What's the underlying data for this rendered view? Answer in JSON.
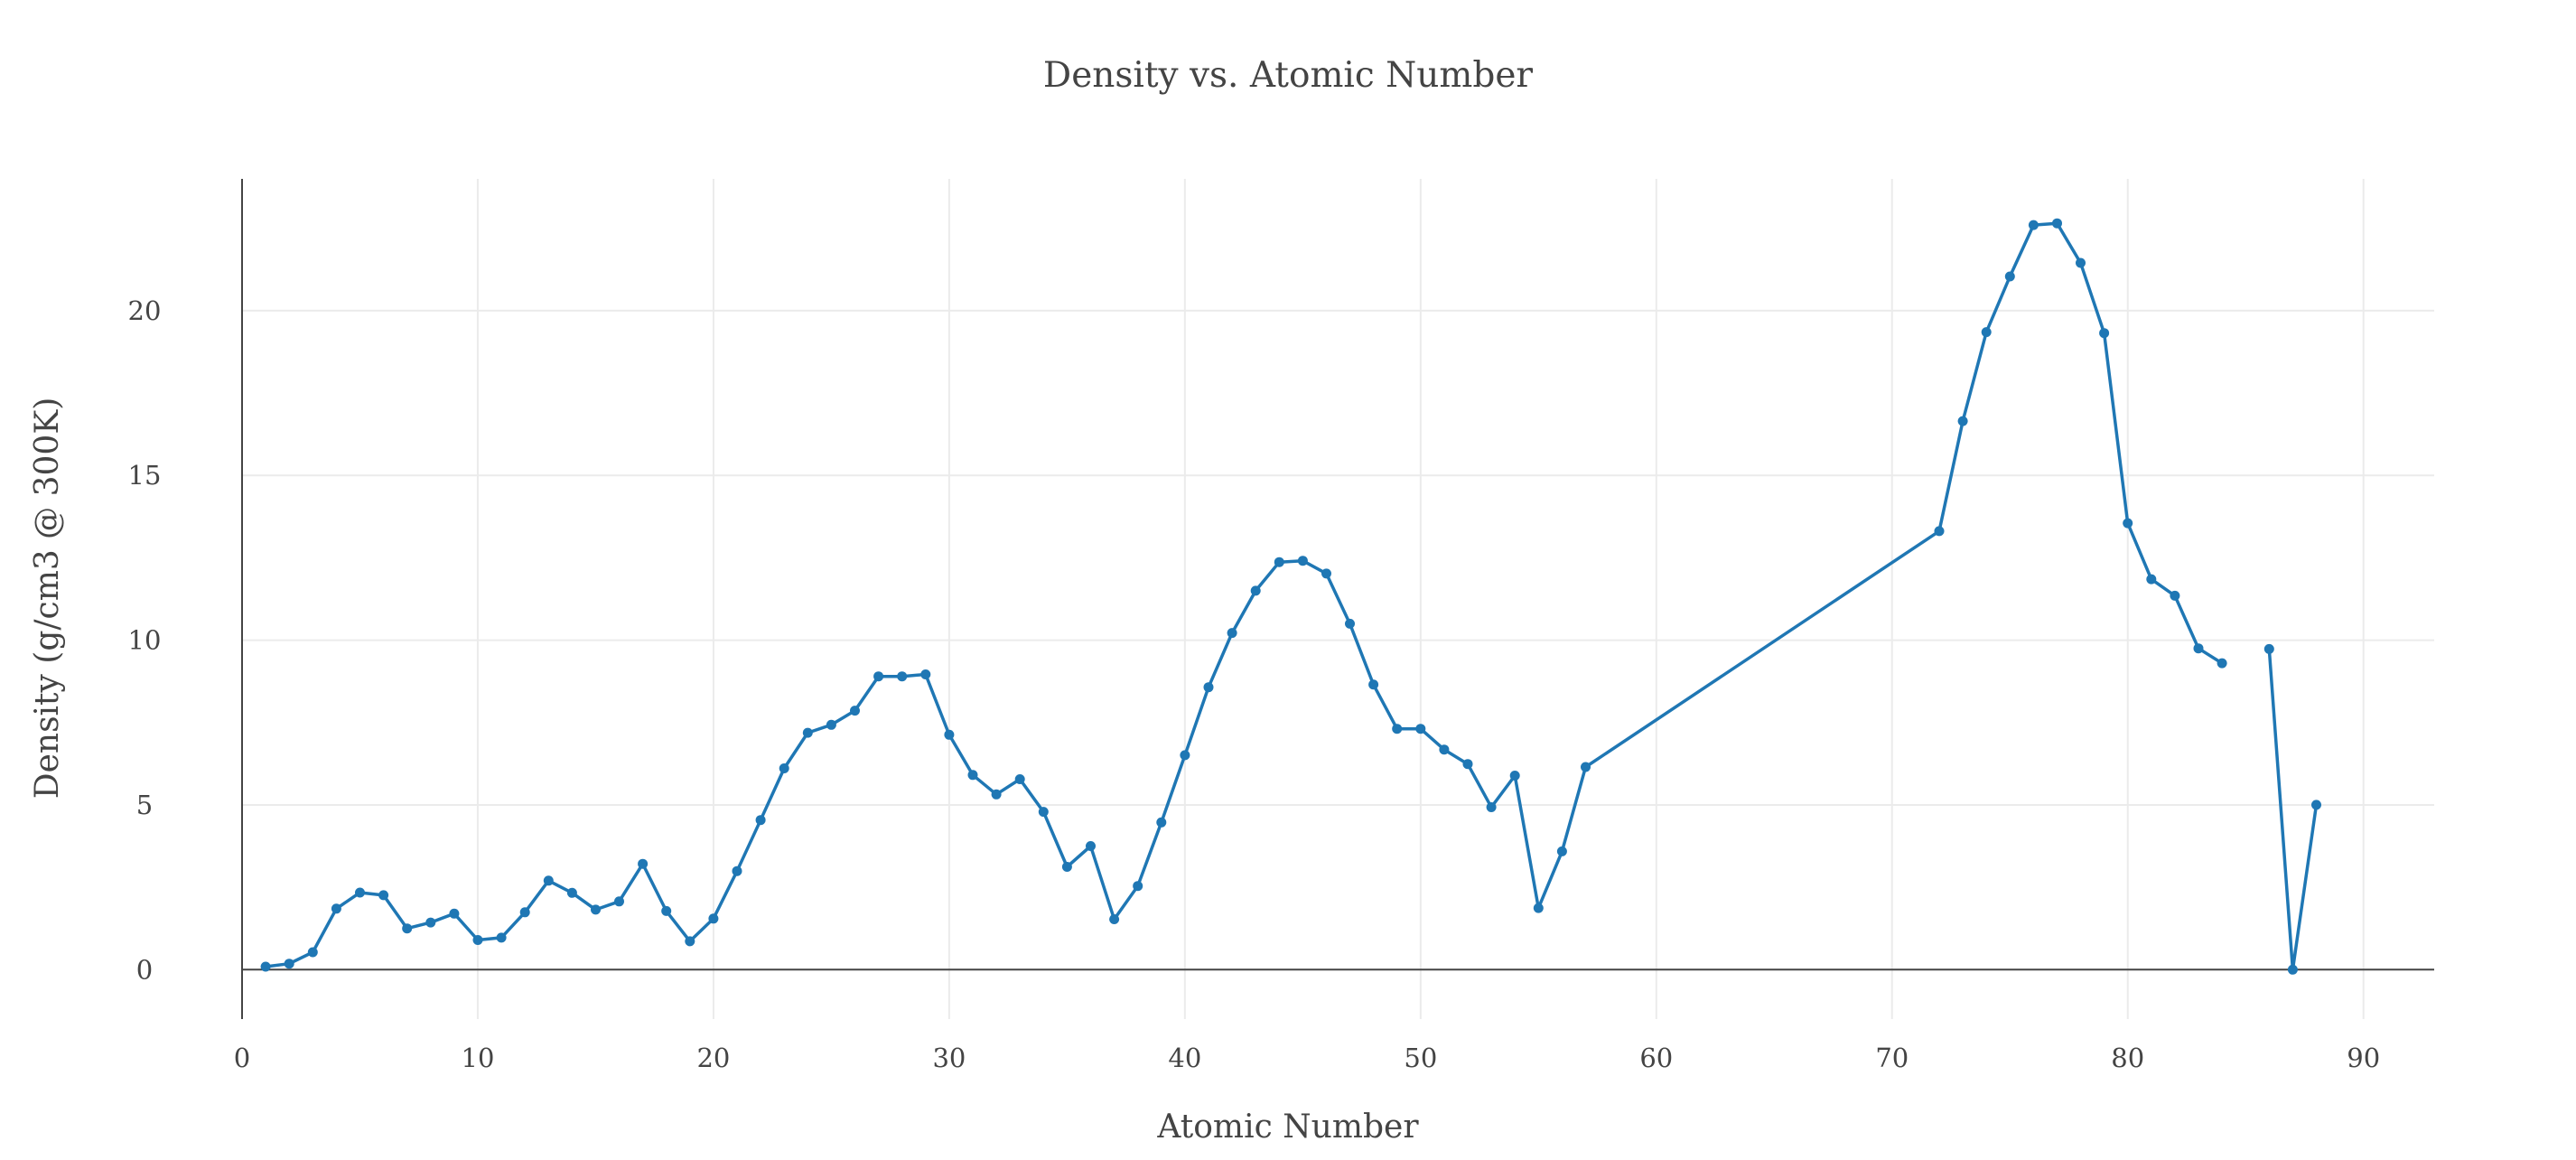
{
  "chart_data": {
    "type": "line",
    "title": "Density vs. Atomic Number",
    "xlabel": "Atomic Number",
    "ylabel": "Density (g/cm3 @ 300K)",
    "xlim": [
      0,
      93
    ],
    "ylim": [
      -1.5,
      24
    ],
    "xticks": [
      0,
      10,
      20,
      30,
      40,
      50,
      60,
      70,
      80,
      90
    ],
    "yticks": [
      0,
      5,
      10,
      15,
      20
    ],
    "grid": true,
    "legend": false,
    "color": "#1f77b4",
    "series": [
      {
        "x": [
          1,
          2,
          3,
          4,
          5,
          6,
          7,
          8,
          9,
          10,
          11,
          12,
          13,
          14,
          15,
          16,
          17,
          18,
          19,
          20,
          21,
          22,
          23,
          24,
          25,
          26,
          27,
          28,
          29,
          30,
          31,
          32,
          33,
          34,
          35,
          36,
          37,
          38,
          39,
          40,
          41,
          42,
          43,
          44,
          45,
          46,
          47,
          48,
          49,
          50,
          51,
          52,
          53,
          54,
          55,
          56,
          57,
          72,
          73,
          74,
          75,
          76,
          77,
          78,
          79,
          80,
          81,
          82,
          83,
          84,
          85,
          86,
          87,
          88
        ],
        "y": [
          0.09,
          0.18,
          0.53,
          1.85,
          2.34,
          2.26,
          1.25,
          1.43,
          1.7,
          0.9,
          0.97,
          1.74,
          2.7,
          2.33,
          1.82,
          2.07,
          3.21,
          1.78,
          0.86,
          1.55,
          2.99,
          4.54,
          6.11,
          7.19,
          7.43,
          7.86,
          8.9,
          8.9,
          8.96,
          7.13,
          5.91,
          5.32,
          5.78,
          4.79,
          3.12,
          3.75,
          1.53,
          2.54,
          4.47,
          6.51,
          8.57,
          10.22,
          11.5,
          12.37,
          12.41,
          12.02,
          10.5,
          8.65,
          7.31,
          7.31,
          6.68,
          6.24,
          4.93,
          5.89,
          1.87,
          3.59,
          6.15,
          13.31,
          16.65,
          19.35,
          21.04,
          22.6,
          22.65,
          21.45,
          19.32,
          13.55,
          11.85,
          11.35,
          9.75,
          9.3,
          null,
          9.73,
          0,
          5
        ]
      }
    ]
  }
}
